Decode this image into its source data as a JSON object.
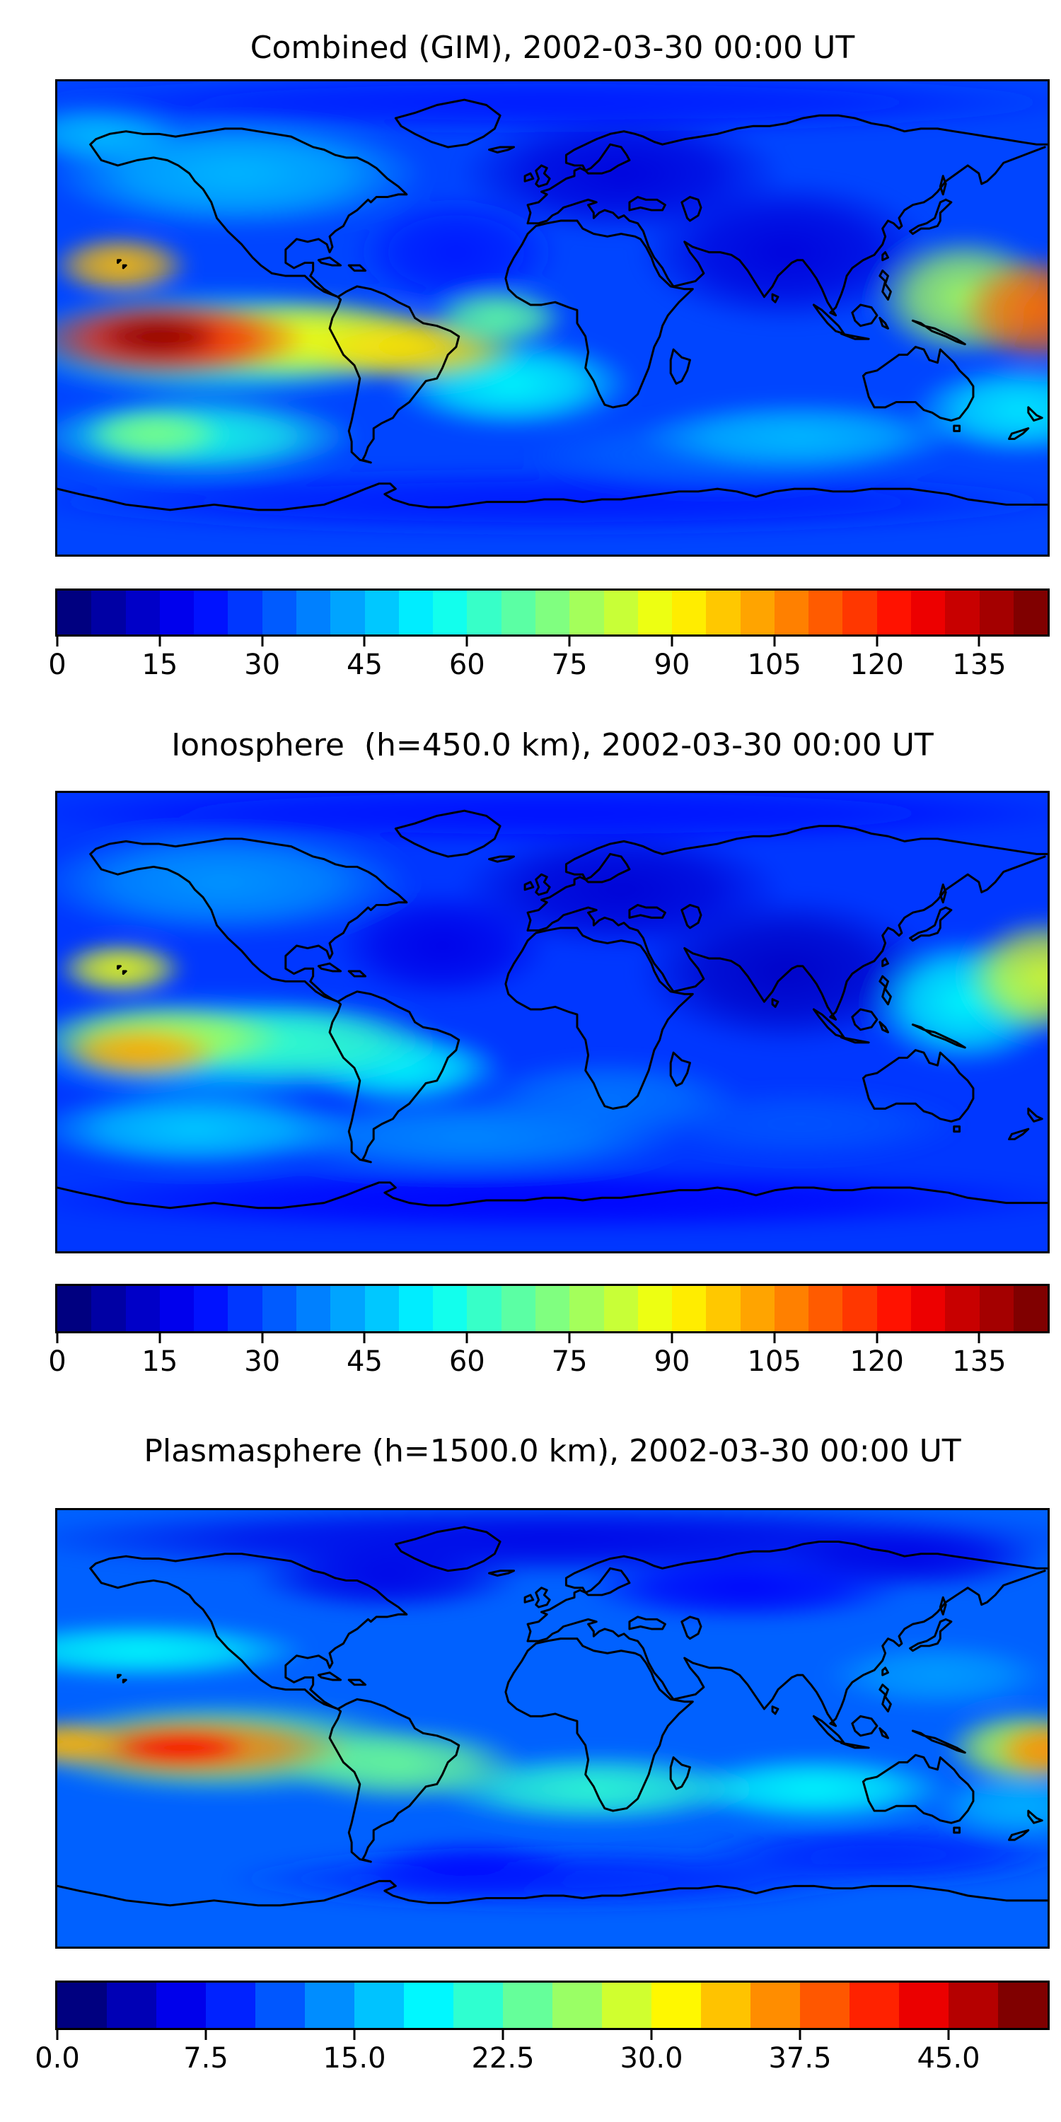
{
  "page": {
    "background": "#ffffff",
    "figure_kind": "three stacked global TEC maps with horizontal colorbars"
  },
  "chart_data": [
    {
      "panel": "top",
      "type": "heatmap",
      "map_type": "filled_contour_world_map",
      "title": "Combined (GIM), 2002-03-30 00:00 UT",
      "projection": "equirectangular",
      "lon_range": [
        -180,
        180
      ],
      "lat_range": [
        -90,
        90
      ],
      "grid": false,
      "colormap": "jet",
      "coastline_color": "#000000",
      "colorbar": {
        "orientation": "horizontal",
        "vmin": 0,
        "vmax": 145,
        "n_levels": 29,
        "tick_values": [
          0,
          15,
          30,
          45,
          60,
          75,
          90,
          105,
          120,
          135
        ],
        "tick_labels": [
          "0",
          "15",
          "30",
          "45",
          "60",
          "75",
          "90",
          "105",
          "120",
          "135"
        ]
      },
      "base_value": 28,
      "field_blobs": [
        {
          "lon": -115,
          "lat": 55,
          "rx": 70,
          "ry": 22,
          "v": 45
        },
        {
          "lon": -165,
          "lat": 70,
          "rx": 32,
          "ry": 12,
          "v": 45
        },
        {
          "lon": 25,
          "lat": 55,
          "rx": 60,
          "ry": 24,
          "v": 13
        },
        {
          "lon": 85,
          "lat": 25,
          "rx": 55,
          "ry": 28,
          "v": 13
        },
        {
          "lon": -35,
          "lat": 25,
          "rx": 38,
          "ry": 22,
          "v": 22
        },
        {
          "lon": 0,
          "lat": 82,
          "rx": 200,
          "ry": 12,
          "v": 22
        },
        {
          "lon": 0,
          "lat": -70,
          "rx": 200,
          "ry": 13,
          "v": 22
        },
        {
          "lon": 60,
          "lat": -52,
          "rx": 70,
          "ry": 15,
          "v": 32
        },
        {
          "lon": 90,
          "lat": -45,
          "rx": 60,
          "ry": 14,
          "v": 45
        },
        {
          "lon": -130,
          "lat": -45,
          "rx": 60,
          "ry": 16,
          "v": 58
        },
        {
          "lon": -145,
          "lat": -44,
          "rx": 26,
          "ry": 10,
          "v": 72
        },
        {
          "lon": -15,
          "lat": -25,
          "rx": 45,
          "ry": 18,
          "v": 55
        },
        {
          "lon": 170,
          "lat": -35,
          "rx": 40,
          "ry": 18,
          "v": 52
        },
        {
          "lon": -120,
          "lat": -10,
          "rx": 80,
          "ry": 22,
          "v": 60
        },
        {
          "lon": -90,
          "lat": -8,
          "rx": 60,
          "ry": 16,
          "v": 90
        },
        {
          "lon": -50,
          "lat": -12,
          "rx": 40,
          "ry": 13,
          "v": 95
        },
        {
          "lon": -20,
          "lat": 0,
          "rx": 26,
          "ry": 12,
          "v": 68
        },
        {
          "lon": 150,
          "lat": 8,
          "rx": 34,
          "ry": 24,
          "v": 78
        },
        {
          "lon": 177,
          "lat": 3,
          "rx": 30,
          "ry": 22,
          "v": 112
        },
        {
          "lon": -157,
          "lat": 20,
          "rx": 26,
          "ry": 12,
          "v": 100
        },
        {
          "lon": -140,
          "lat": -8,
          "rx": 52,
          "ry": 16,
          "v": 125
        },
        {
          "lon": -143,
          "lat": -7,
          "rx": 24,
          "ry": 9,
          "v": 143
        }
      ],
      "notable_features": [
        "Strong equatorial enhancement over the central Pacific, peak about 143 near 140W 8S (dark red)",
        "Secondary warm maximum about 110 at the eastern map edge near 175E just north of the equator",
        "Orange tongue about 90-105 extending east across Peru and northern South America",
        "Minimum about 10-15 over Europe, the North Atlantic and the India / Indian Ocean sector",
        "Cool blue values about 20-35 at high southern latitudes and along the bottom (Antarctica)"
      ]
    },
    {
      "panel": "middle",
      "type": "heatmap",
      "map_type": "filled_contour_world_map",
      "title": "Ionosphere  (h=450.0 km), 2002-03-30 00:00 UT",
      "projection": "equirectangular",
      "lon_range": [
        -180,
        180
      ],
      "lat_range": [
        -90,
        90
      ],
      "grid": false,
      "colormap": "jet",
      "coastline_color": "#000000",
      "colorbar": {
        "orientation": "horizontal",
        "vmin": 0,
        "vmax": 145,
        "n_levels": 29,
        "tick_values": [
          0,
          15,
          30,
          45,
          60,
          75,
          90,
          105,
          120,
          135
        ],
        "tick_labels": [
          "0",
          "15",
          "30",
          "45",
          "60",
          "75",
          "90",
          "105",
          "120",
          "135"
        ]
      },
      "base_value": 26,
      "field_blobs": [
        {
          "lon": -120,
          "lat": 55,
          "rx": 70,
          "ry": 22,
          "v": 40
        },
        {
          "lon": 25,
          "lat": 52,
          "rx": 60,
          "ry": 24,
          "v": 12
        },
        {
          "lon": 85,
          "lat": 20,
          "rx": 55,
          "ry": 30,
          "v": 10
        },
        {
          "lon": -40,
          "lat": 30,
          "rx": 40,
          "ry": 22,
          "v": 15
        },
        {
          "lon": 0,
          "lat": 82,
          "rx": 200,
          "ry": 12,
          "v": 20
        },
        {
          "lon": 0,
          "lat": -70,
          "rx": 200,
          "ry": 13,
          "v": 18
        },
        {
          "lon": -30,
          "lat": -45,
          "rx": 80,
          "ry": 16,
          "v": 38
        },
        {
          "lon": 90,
          "lat": -40,
          "rx": 60,
          "ry": 14,
          "v": 30
        },
        {
          "lon": -130,
          "lat": -42,
          "rx": 60,
          "ry": 16,
          "v": 48
        },
        {
          "lon": -55,
          "lat": -18,
          "rx": 38,
          "ry": 15,
          "v": 55
        },
        {
          "lon": 20,
          "lat": -30,
          "rx": 50,
          "ry": 16,
          "v": 35
        },
        {
          "lon": -120,
          "lat": -10,
          "rx": 80,
          "ry": 22,
          "v": 48
        },
        {
          "lon": -95,
          "lat": -8,
          "rx": 55,
          "ry": 16,
          "v": 62
        },
        {
          "lon": 150,
          "lat": 8,
          "rx": 36,
          "ry": 26,
          "v": 55
        },
        {
          "lon": 179,
          "lat": 18,
          "rx": 30,
          "ry": 24,
          "v": 85
        },
        {
          "lon": -157,
          "lat": 21,
          "rx": 24,
          "ry": 11,
          "v": 88
        },
        {
          "lon": -142,
          "lat": -6,
          "rx": 46,
          "ry": 14,
          "v": 80
        },
        {
          "lon": -150,
          "lat": -12,
          "rx": 30,
          "ry": 11,
          "v": 103
        }
      ],
      "notable_features": [
        "Same colour scale as top panel but weaker field overall",
        "Peak about 100-105 (orange) in the south-central Pacific near 150W 12S",
        "Yellow spot about 88 near Hawaii (157W 21N)",
        "Yellow-green enhancement about 85 at the eastern map edge east of Japan",
        "Deep minimum below 15 (dark blue) over Europe, Africa-India and the Indian Ocean"
      ]
    },
    {
      "panel": "bottom",
      "type": "heatmap",
      "map_type": "filled_contour_world_map",
      "title": "Plasmasphere (h=1500.0 km), 2002-03-30 00:00 UT",
      "projection": "equirectangular",
      "lon_range": [
        -180,
        180
      ],
      "lat_range": [
        -90,
        90
      ],
      "grid": false,
      "colormap": "jet",
      "coastline_color": "#000000",
      "colorbar": {
        "orientation": "horizontal",
        "vmin": 0,
        "vmax": 50,
        "n_levels": 20,
        "tick_values": [
          0,
          7.5,
          15,
          22.5,
          30,
          37.5,
          45
        ],
        "tick_labels": [
          "0.0",
          "7.5",
          "15.0",
          "22.5",
          "30.0",
          "37.5",
          "45.0"
        ]
      },
      "base_value": 11,
      "field_blobs": [
        {
          "lon": 0,
          "lat": 78,
          "rx": 200,
          "ry": 15,
          "v": 5
        },
        {
          "lon": -60,
          "lat": 62,
          "rx": 50,
          "ry": 14,
          "v": 5
        },
        {
          "lon": 70,
          "lat": 58,
          "rx": 60,
          "ry": 14,
          "v": 6
        },
        {
          "lon": 130,
          "lat": 70,
          "rx": 50,
          "ry": 13,
          "v": 5
        },
        {
          "lon": -150,
          "lat": 32,
          "rx": 62,
          "ry": 12,
          "v": 19
        },
        {
          "lon": 140,
          "lat": 22,
          "rx": 42,
          "ry": 14,
          "v": 14
        },
        {
          "lon": 95,
          "lat": -25,
          "rx": 50,
          "ry": 14,
          "v": 19
        },
        {
          "lon": 15,
          "lat": -25,
          "rx": 60,
          "ry": 15,
          "v": 21
        },
        {
          "lon": -55,
          "lat": -15,
          "rx": 45,
          "ry": 16,
          "v": 24
        },
        {
          "lon": 0,
          "lat": -62,
          "rx": 120,
          "ry": 13,
          "v": 8
        },
        {
          "lon": 120,
          "lat": -52,
          "rx": 70,
          "ry": 13,
          "v": 8
        },
        {
          "lon": -30,
          "lat": -58,
          "rx": 40,
          "ry": 12,
          "v": 7
        },
        {
          "lon": 170,
          "lat": -32,
          "rx": 32,
          "ry": 14,
          "v": 15
        },
        {
          "lon": -120,
          "lat": -8,
          "rx": 75,
          "ry": 20,
          "v": 24
        },
        {
          "lon": -130,
          "lat": -8,
          "rx": 58,
          "ry": 14,
          "v": 38
        },
        {
          "lon": -178,
          "lat": -6,
          "rx": 24,
          "ry": 10,
          "v": 35
        },
        {
          "lon": 172,
          "lat": -8,
          "rx": 30,
          "ry": 16,
          "v": 28
        },
        {
          "lon": 180,
          "lat": -9,
          "rx": 20,
          "ry": 12,
          "v": 37
        },
        {
          "lon": -135,
          "lat": -8,
          "rx": 26,
          "ry": 8,
          "v": 44
        }
      ],
      "notable_features": [
        "Separate colour scale 0-50 with ticks every 7.5",
        "Elongated orange-red band about 38-44 along the equator across the eastern Pacific, core near 135W 8S",
        "Second warm maximum about 36 at the eastern map edge near the Solomon Islands",
        "Green values about 20-25 over South America and the South Atlantic / southern Africa band",
        "Dark navy minima below 7 at high northern latitudes and patches in the far south"
      ]
    }
  ]
}
